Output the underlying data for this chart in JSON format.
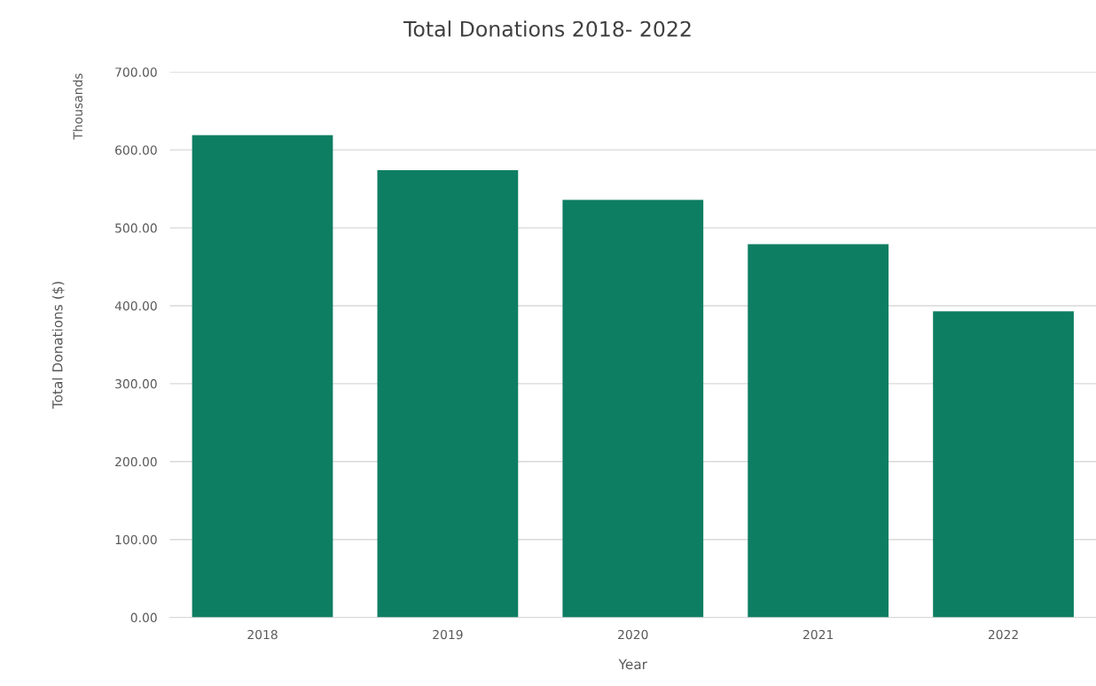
{
  "chart_data": {
    "type": "bar",
    "title": "Total Donations 2018- 2022",
    "xlabel": "Year",
    "ylabel": "Total Donations ($)",
    "annotations": [
      "Thousands"
    ],
    "categories": [
      "2018",
      "2019",
      "2020",
      "2021",
      "2022"
    ],
    "values": [
      619,
      574,
      536,
      479,
      393
    ],
    "color": "#0e7e62",
    "ylim": [
      0,
      700
    ],
    "yticks": [
      {
        "value": 0,
        "label": "0.00"
      },
      {
        "value": 100,
        "label": "100.00"
      },
      {
        "value": 200,
        "label": "200.00"
      },
      {
        "value": 300,
        "label": "300.00"
      },
      {
        "value": 400,
        "label": "400.00"
      },
      {
        "value": 500,
        "label": "500.00"
      },
      {
        "value": 600,
        "label": "600.00"
      },
      {
        "value": 700,
        "label": "700.00"
      }
    ],
    "grid": "y"
  }
}
